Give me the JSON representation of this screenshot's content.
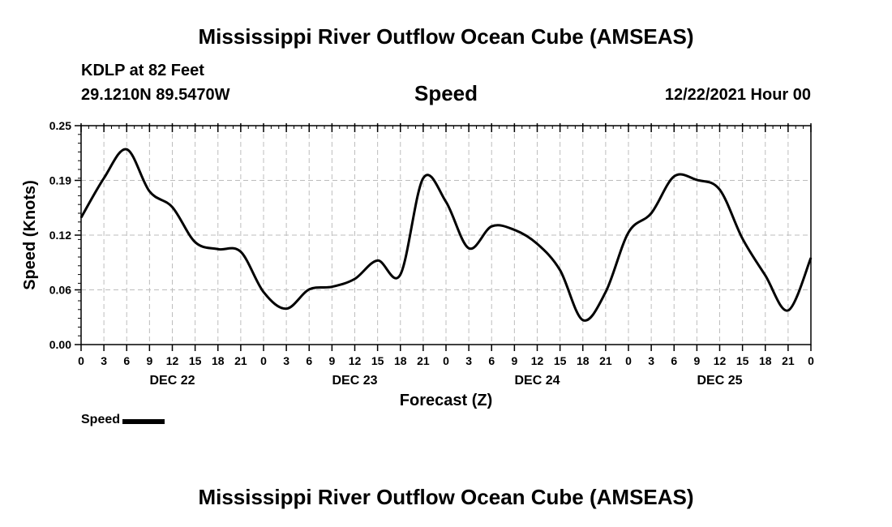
{
  "header": {
    "title": "Mississippi River Outflow Ocean Cube (AMSEAS)",
    "station": "KDLP at 82 Feet",
    "coords": "29.1210N  89.5470W",
    "chart_title": "Speed",
    "run_time": "12/22/2021 Hour 00"
  },
  "footer": {
    "title": "Mississippi River Outflow Ocean Cube (AMSEAS)"
  },
  "legend": {
    "label": "Speed"
  },
  "chart_data": {
    "type": "line",
    "title": "Speed",
    "xlabel": "Forecast (Z)",
    "ylabel": "Speed (Knots)",
    "xlim": [
      0,
      96
    ],
    "ylim": [
      0,
      0.25
    ],
    "y_ticks": [
      "0.00",
      "0.06",
      "0.12",
      "0.19",
      "0.25"
    ],
    "y_tick_values": [
      0,
      0.0625,
      0.125,
      0.1875,
      0.25
    ],
    "x_ticks": [
      0,
      3,
      6,
      9,
      12,
      15,
      18,
      21,
      24,
      27,
      30,
      33,
      36,
      39,
      42,
      45,
      48,
      51,
      54,
      57,
      60,
      63,
      66,
      69,
      72,
      75,
      78,
      81,
      84,
      87,
      90,
      93,
      96
    ],
    "x_tick_labels": [
      "0",
      "3",
      "6",
      "9",
      "12",
      "15",
      "18",
      "21",
      "0",
      "3",
      "6",
      "9",
      "12",
      "15",
      "18",
      "21",
      "0",
      "3",
      "6",
      "9",
      "12",
      "15",
      "18",
      "21",
      "0",
      "3",
      "6",
      "9",
      "12",
      "15",
      "18",
      "21",
      "0"
    ],
    "date_labels": [
      {
        "text": "DEC 22",
        "hour": 12
      },
      {
        "text": "DEC 23",
        "hour": 36
      },
      {
        "text": "DEC 24",
        "hour": 60
      },
      {
        "text": "DEC 25",
        "hour": 84
      }
    ],
    "grid": true,
    "legend_position": "bottom-left",
    "series": [
      {
        "name": "Speed",
        "color": "#000000",
        "x": [
          0,
          3,
          6,
          9,
          12,
          15,
          18,
          21,
          24,
          27,
          30,
          33,
          36,
          39,
          42,
          45,
          48,
          51,
          54,
          57,
          60,
          63,
          66,
          69,
          72,
          75,
          78,
          81,
          84,
          87,
          90,
          93,
          96
        ],
        "y": [
          0.145,
          0.19,
          0.223,
          0.175,
          0.157,
          0.117,
          0.109,
          0.106,
          0.06,
          0.041,
          0.063,
          0.066,
          0.075,
          0.096,
          0.08,
          0.19,
          0.163,
          0.11,
          0.135,
          0.131,
          0.115,
          0.085,
          0.028,
          0.06,
          0.128,
          0.15,
          0.192,
          0.188,
          0.177,
          0.121,
          0.079,
          0.039,
          0.099
        ]
      }
    ]
  }
}
